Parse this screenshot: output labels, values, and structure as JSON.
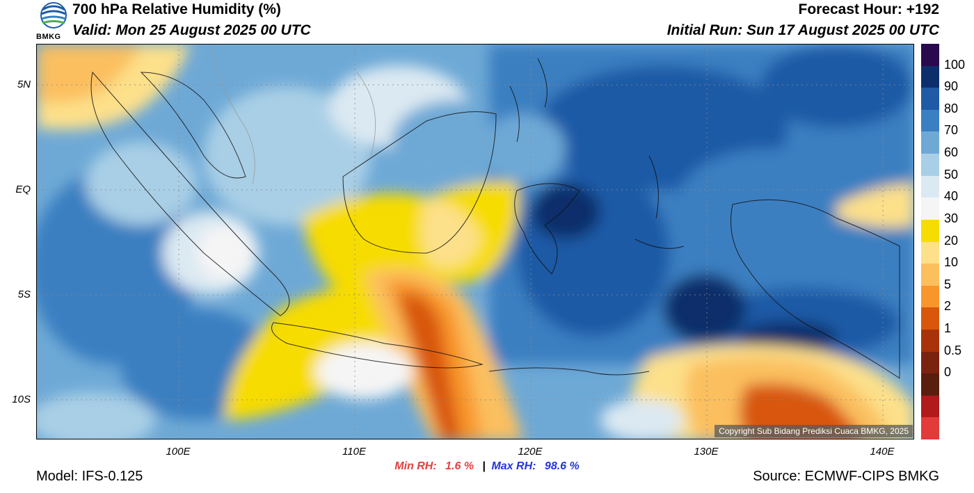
{
  "header": {
    "title": "700 hPa Relative Humidity (%)",
    "valid": "Valid: Mon 25 August 2025 00 UTC",
    "forecast_hour": "Forecast Hour: +192",
    "initial_run": "Initial Run: Sun 17 August 2025 00 UTC",
    "logo_text": "BMKG"
  },
  "map": {
    "lat_labels": [
      "5N",
      "EQ",
      "5S",
      "10S"
    ],
    "lon_labels": [
      "100E",
      "110E",
      "120E",
      "130E",
      "140E"
    ],
    "copyright": "Copyright Sub Bidang Prediksi Cuaca BMKG, 2025"
  },
  "stats": {
    "min_label": "Min RH:",
    "min_value": "1.6 %",
    "separator": "|",
    "max_label": "Max RH:",
    "max_value": "98.6 %"
  },
  "footer": {
    "model": "Model: IFS-0.125",
    "source": "Source: ECMWF-CIPS BMKG"
  },
  "colorbar": {
    "labels": [
      "100",
      "90",
      "80",
      "70",
      "60",
      "50",
      "40",
      "30",
      "20",
      "10",
      "5",
      "2",
      "1",
      "0.5",
      "0"
    ],
    "colors": [
      "#2a0a4e",
      "#0c2f6b",
      "#1f5aa6",
      "#3a7fc1",
      "#6ea9d6",
      "#a9cfe6",
      "#dbe9f2",
      "#f5f5f5",
      "#f7dc00",
      "#fde08a",
      "#fbbf5e",
      "#f8962c",
      "#d8570a",
      "#a8320a",
      "#7a2410",
      "#5a1e0e",
      "#b01a1a",
      "#e33a3a"
    ],
    "accent_red": "#e34040",
    "accent_blue": "#2233dd"
  }
}
